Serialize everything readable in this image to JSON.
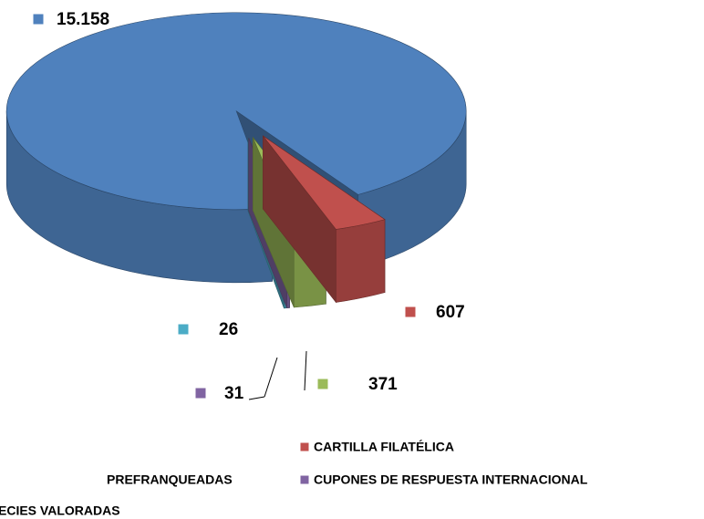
{
  "chart_data": {
    "type": "pie3d",
    "categories": [
      null,
      "CARTILLA FILATÉLICA",
      "PREFRANQUEADAS",
      "CUPONES DE RESPUESTA INTERNACIONAL",
      "ECIES VALORADAS"
    ],
    "values": [
      15158,
      607,
      371,
      31,
      26
    ],
    "value_labels": [
      "15.158",
      "607",
      "371",
      "31",
      "26"
    ],
    "colors": [
      "#4f81bd",
      "#c0504d",
      "#9bbb59",
      "#8064a2",
      "#4bacc6"
    ]
  }
}
